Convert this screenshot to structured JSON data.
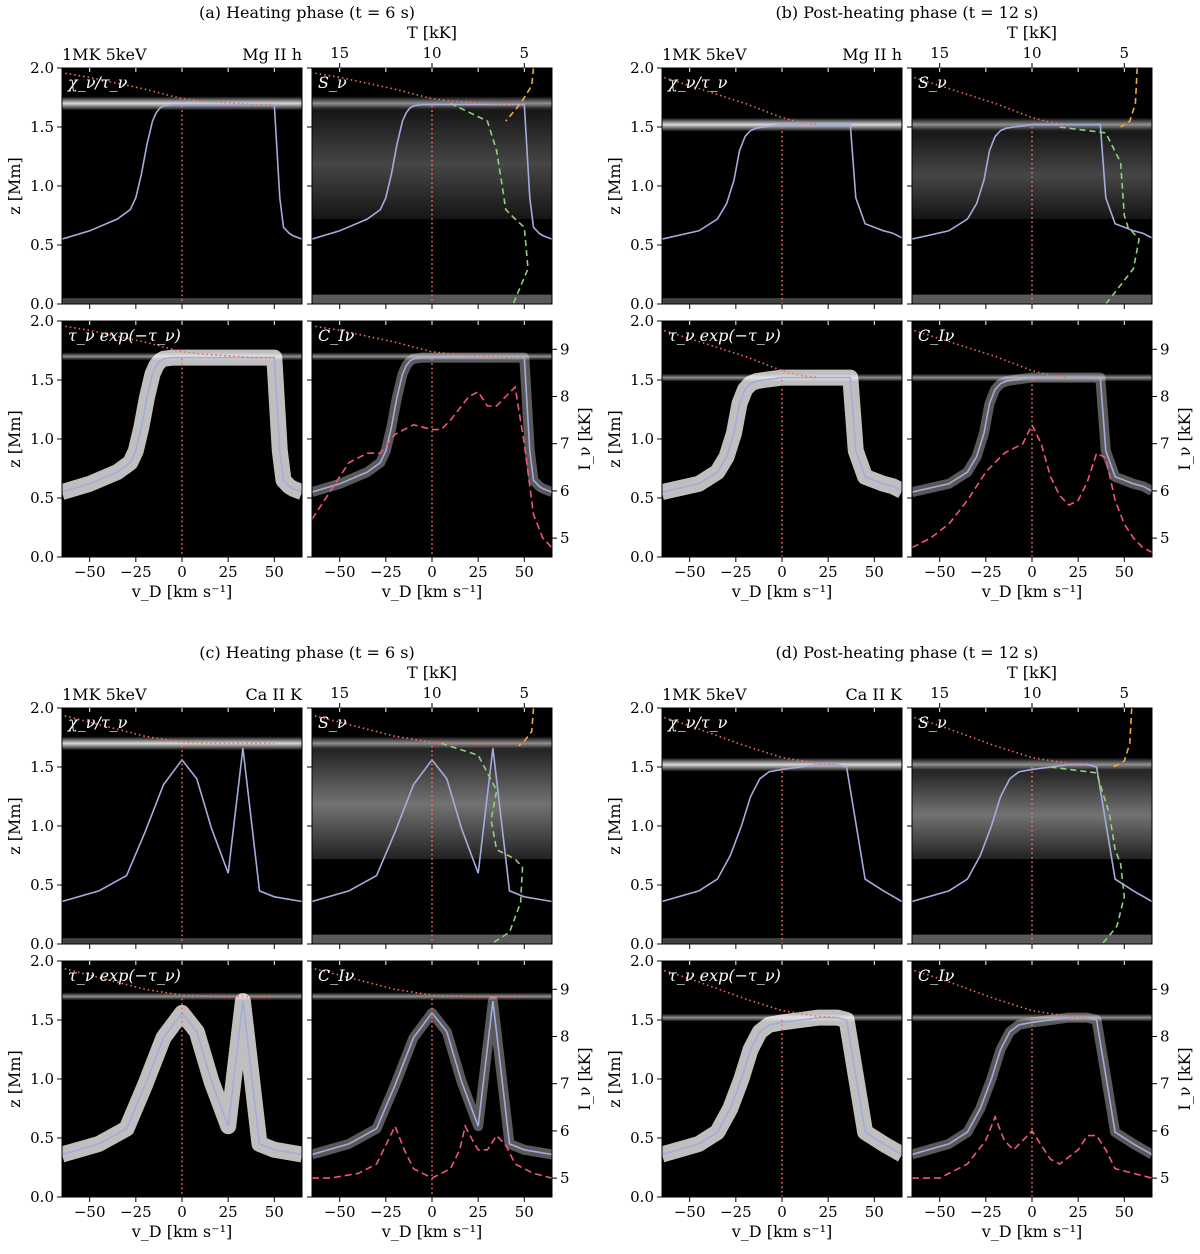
{
  "colors": {
    "background": "#000000",
    "velocity_curve": "#a3acde",
    "temperature_dotted": "#f26d5e",
    "v_zero_dotted": "#f26d5e",
    "source_dashed_orange": "#f5a93a",
    "source_dashed_green": "#8fd07a",
    "intensity_dashed_pink": "#f0557e"
  },
  "shared": {
    "model_label": "1MK 5keV",
    "xlabel": "v_D [km s^-1]",
    "ylabel": "z [Mm]",
    "top_axis_label": "T [kK]",
    "right_axis_label": "I_ν [kK]",
    "x_ticks": [
      -50,
      -25,
      0,
      25,
      50
    ],
    "x_lim": [
      -65,
      65
    ],
    "y_ticks": [
      0.0,
      0.5,
      1.0,
      1.5,
      2.0
    ],
    "y_lim": [
      0,
      2.0
    ],
    "t_ticks": [
      15,
      10,
      5
    ],
    "i_ticks": [
      5,
      6,
      7,
      8,
      9
    ],
    "sub_labels": [
      "χ_ν/τ_ν",
      "S_ν",
      "τ_ν exp(−τ_ν)",
      "C_Iν"
    ]
  },
  "chart_data": [
    {
      "type": "heatmap",
      "id": "a",
      "title": "(a) Heating phase (t = 6 s)",
      "line": "Mg II h",
      "tau_unity_height": 1.7,
      "velocity_profile": {
        "x": [
          -65,
          -50,
          -35,
          -28,
          -25,
          -22,
          -19,
          -16,
          -14,
          -12,
          -10,
          -5,
          0,
          10,
          20,
          30,
          40,
          45,
          50,
          53,
          55,
          58,
          60,
          65
        ],
        "y": [
          0.55,
          0.62,
          0.72,
          0.8,
          0.9,
          1.1,
          1.35,
          1.55,
          1.62,
          1.66,
          1.68,
          1.69,
          1.69,
          1.69,
          1.69,
          1.69,
          1.69,
          1.69,
          1.69,
          0.9,
          0.65,
          0.6,
          0.58,
          0.55
        ]
      },
      "temperature_profile": {
        "t_kK": [
          18,
          15,
          12,
          10,
          9,
          8,
          7,
          6,
          5
        ],
        "z": [
          2.0,
          1.92,
          1.82,
          1.74,
          1.72,
          1.71,
          1.7,
          1.69,
          1.69
        ]
      },
      "source_function": {
        "orange_T": [
          4.5,
          4.6,
          5.2,
          6.0
        ],
        "orange_z": [
          2.0,
          1.85,
          1.7,
          1.55
        ],
        "green_T": [
          9,
          7,
          6.5,
          6.2,
          6.0,
          5.5,
          5.0,
          4.8,
          5.6
        ],
        "green_z": [
          1.7,
          1.55,
          1.3,
          1.0,
          0.8,
          0.72,
          0.65,
          0.3,
          0.0
        ]
      },
      "intensity_profile": {
        "v": [
          -65,
          -55,
          -45,
          -35,
          -28,
          -20,
          -10,
          0,
          5,
          10,
          20,
          25,
          30,
          35,
          40,
          45,
          50,
          55,
          60,
          65
        ],
        "I_kK": [
          5.4,
          6.0,
          6.6,
          6.8,
          6.8,
          7.2,
          7.4,
          7.3,
          7.3,
          7.5,
          8.0,
          8.1,
          7.8,
          7.8,
          8.0,
          8.2,
          7.0,
          5.5,
          5.0,
          4.8
        ]
      }
    },
    {
      "type": "heatmap",
      "id": "b",
      "title": "(b) Post-heating phase (t = 12 s)",
      "line": "Mg II h",
      "tau_unity_height": 1.52,
      "velocity_profile": {
        "x": [
          -65,
          -45,
          -35,
          -30,
          -26,
          -23,
          -20,
          -17,
          -14,
          -10,
          -5,
          0,
          10,
          20,
          30,
          35,
          37,
          40,
          45,
          50,
          55,
          60,
          65
        ],
        "y": [
          0.55,
          0.62,
          0.72,
          0.85,
          1.05,
          1.3,
          1.42,
          1.47,
          1.49,
          1.5,
          1.51,
          1.52,
          1.52,
          1.52,
          1.52,
          1.52,
          1.52,
          0.9,
          0.68,
          0.65,
          0.62,
          0.6,
          0.56
        ]
      },
      "temperature_profile": {
        "t_kK": [
          18,
          15,
          12,
          10,
          9,
          8
        ],
        "z": [
          2.0,
          1.85,
          1.7,
          1.58,
          1.54,
          1.52
        ]
      },
      "source_function": {
        "orange_T": [
          4.3,
          4.4,
          4.7,
          5.2
        ],
        "orange_z": [
          2.0,
          1.7,
          1.55,
          1.5
        ],
        "green_T": [
          8.5,
          6.0,
          5.2,
          5.0,
          4.8,
          4.2,
          4.5,
          6.0
        ],
        "green_z": [
          1.5,
          1.45,
          1.2,
          0.75,
          0.65,
          0.55,
          0.3,
          0.0
        ]
      },
      "intensity_profile": {
        "v": [
          -65,
          -55,
          -45,
          -35,
          -25,
          -15,
          -10,
          -5,
          0,
          5,
          10,
          15,
          20,
          25,
          30,
          35,
          40,
          45,
          50,
          55,
          60,
          65
        ],
        "I_kK": [
          4.8,
          5.0,
          5.3,
          5.8,
          6.4,
          6.8,
          6.9,
          7.0,
          7.4,
          7.0,
          6.3,
          5.9,
          5.7,
          5.8,
          6.2,
          6.8,
          6.7,
          5.8,
          5.3,
          5.0,
          4.8,
          4.7
        ]
      }
    },
    {
      "type": "heatmap",
      "id": "c",
      "title": "(c) Heating phase (t = 6 s)",
      "line": "Ca II K",
      "tau_unity_height": 1.7,
      "velocity_profile": {
        "x": [
          -65,
          -45,
          -30,
          -20,
          -10,
          0,
          8,
          16,
          25,
          33,
          42,
          50,
          65
        ],
        "y": [
          0.36,
          0.45,
          0.58,
          0.95,
          1.35,
          1.56,
          1.4,
          0.98,
          0.6,
          1.66,
          0.45,
          0.4,
          0.36
        ]
      },
      "temperature_profile": {
        "t_kK": [
          18,
          15,
          12,
          10,
          8,
          6,
          5
        ],
        "z": [
          2.0,
          1.88,
          1.76,
          1.71,
          1.7,
          1.7,
          1.7
        ]
      },
      "source_function": {
        "orange_T": [
          4.5,
          4.6,
          5.0,
          5.3
        ],
        "orange_z": [
          2.0,
          1.8,
          1.72,
          1.68
        ],
        "green_T": [
          9.5,
          7.5,
          6.5,
          6.8,
          6.5,
          5.5,
          5.1,
          5.2,
          5.8,
          6.8
        ],
        "green_z": [
          1.7,
          1.6,
          1.3,
          1.05,
          0.8,
          0.72,
          0.65,
          0.35,
          0.1,
          0.0
        ]
      },
      "intensity_profile": {
        "v": [
          -65,
          -55,
          -40,
          -30,
          -25,
          -20,
          -15,
          -10,
          0,
          10,
          15,
          18,
          22,
          25,
          30,
          35,
          40,
          45,
          55,
          65
        ],
        "I_kK": [
          5.0,
          5.0,
          5.1,
          5.3,
          5.7,
          6.1,
          5.6,
          5.2,
          5.0,
          5.2,
          5.6,
          6.1,
          5.8,
          5.6,
          5.6,
          5.9,
          5.7,
          5.3,
          5.1,
          5.0
        ]
      }
    },
    {
      "type": "heatmap",
      "id": "d",
      "title": "(d) Post-heating phase (t = 12 s)",
      "line": "Ca II K",
      "tau_unity_height": 1.52,
      "velocity_profile": {
        "x": [
          -65,
          -45,
          -35,
          -28,
          -22,
          -17,
          -12,
          -7,
          0,
          10,
          20,
          30,
          35,
          45,
          55,
          65
        ],
        "y": [
          0.36,
          0.45,
          0.55,
          0.75,
          1.0,
          1.25,
          1.4,
          1.46,
          1.48,
          1.5,
          1.52,
          1.52,
          1.5,
          0.55,
          0.45,
          0.36
        ]
      },
      "temperature_profile": {
        "t_kK": [
          18,
          15,
          12,
          10,
          8,
          7
        ],
        "z": [
          2.0,
          1.85,
          1.68,
          1.58,
          1.53,
          1.52
        ]
      },
      "source_function": {
        "orange_T": [
          4.6,
          4.7,
          5.0,
          5.6
        ],
        "orange_z": [
          2.0,
          1.7,
          1.55,
          1.5
        ],
        "green_T": [
          9,
          6.5,
          5.8,
          5.5,
          5.2,
          5.0,
          5.4,
          6.2
        ],
        "green_z": [
          1.5,
          1.45,
          1.1,
          0.8,
          0.68,
          0.4,
          0.15,
          0.0
        ]
      },
      "intensity_profile": {
        "v": [
          -65,
          -50,
          -35,
          -25,
          -20,
          -15,
          -10,
          -5,
          0,
          5,
          10,
          15,
          25,
          30,
          35,
          40,
          45,
          55,
          65
        ],
        "I_kK": [
          5.0,
          5.0,
          5.3,
          5.8,
          6.3,
          5.8,
          5.6,
          5.8,
          6.0,
          5.7,
          5.4,
          5.3,
          5.6,
          5.9,
          5.9,
          5.6,
          5.2,
          5.1,
          5.0
        ]
      }
    }
  ]
}
